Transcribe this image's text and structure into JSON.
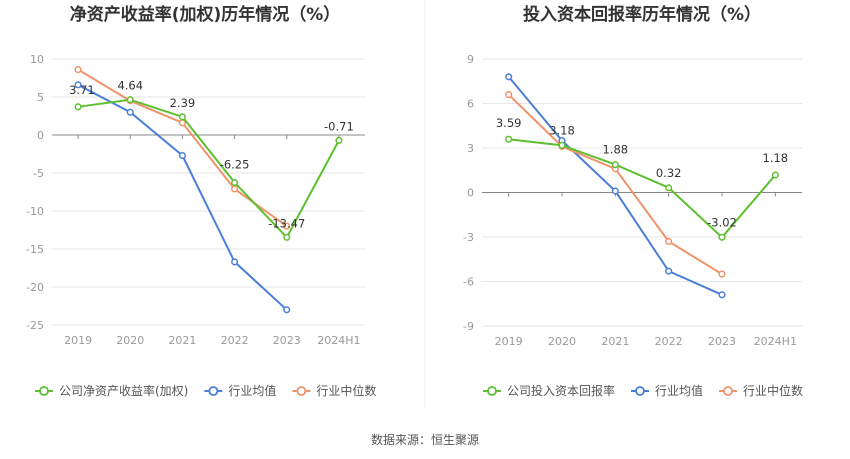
{
  "source": "数据来源：恒生聚源",
  "colors": {
    "company": "#5cc02e",
    "industry_avg": "#4a7fd8",
    "industry_median": "#f0936b",
    "grid": "#e6e6e6",
    "axis": "#999999"
  },
  "chart_data": [
    {
      "type": "line",
      "title": "净资产收益率(加权)历年情况（%）",
      "categories": [
        "2019",
        "2020",
        "2021",
        "2022",
        "2023",
        "2024H1"
      ],
      "ylim": [
        -25,
        10
      ],
      "yticks": [
        10,
        5,
        0,
        -5,
        -10,
        -15,
        -20,
        -25
      ],
      "grid": true,
      "legend_position": "bottom",
      "series": [
        {
          "name": "公司净资产收益率(加权)",
          "key": "company",
          "values": [
            3.71,
            4.64,
            2.39,
            -6.25,
            -13.47,
            -0.71
          ],
          "labels": [
            "3.71",
            "4.64",
            "2.39",
            "-6.25",
            "-13.47",
            "-0.71"
          ]
        },
        {
          "name": "行业均值",
          "key": "industry_avg",
          "values": [
            6.6,
            3.0,
            -2.7,
            -16.7,
            -23.0,
            null
          ]
        },
        {
          "name": "行业中位数",
          "key": "industry_median",
          "values": [
            8.6,
            4.5,
            1.6,
            -7.1,
            -12.0,
            null
          ]
        }
      ]
    },
    {
      "type": "line",
      "title": "投入资本回报率历年情况（%）",
      "categories": [
        "2019",
        "2020",
        "2021",
        "2022",
        "2023",
        "2024H1"
      ],
      "ylim": [
        -9,
        9
      ],
      "yticks": [
        9,
        6,
        3,
        0,
        -3,
        -6,
        -9
      ],
      "grid": true,
      "legend_position": "bottom",
      "series": [
        {
          "name": "公司投入资本回报率",
          "key": "company",
          "values": [
            3.59,
            3.18,
            1.88,
            0.32,
            -3.02,
            1.18
          ],
          "labels": [
            "3.59",
            "3.18",
            "1.88",
            "0.32",
            "-3.02",
            "1.18"
          ]
        },
        {
          "name": "行业均值",
          "key": "industry_avg",
          "values": [
            7.8,
            3.5,
            0.1,
            -5.3,
            -6.9,
            null
          ]
        },
        {
          "name": "行业中位数",
          "key": "industry_median",
          "values": [
            6.6,
            3.1,
            1.6,
            -3.3,
            -5.5,
            null
          ]
        }
      ]
    }
  ]
}
